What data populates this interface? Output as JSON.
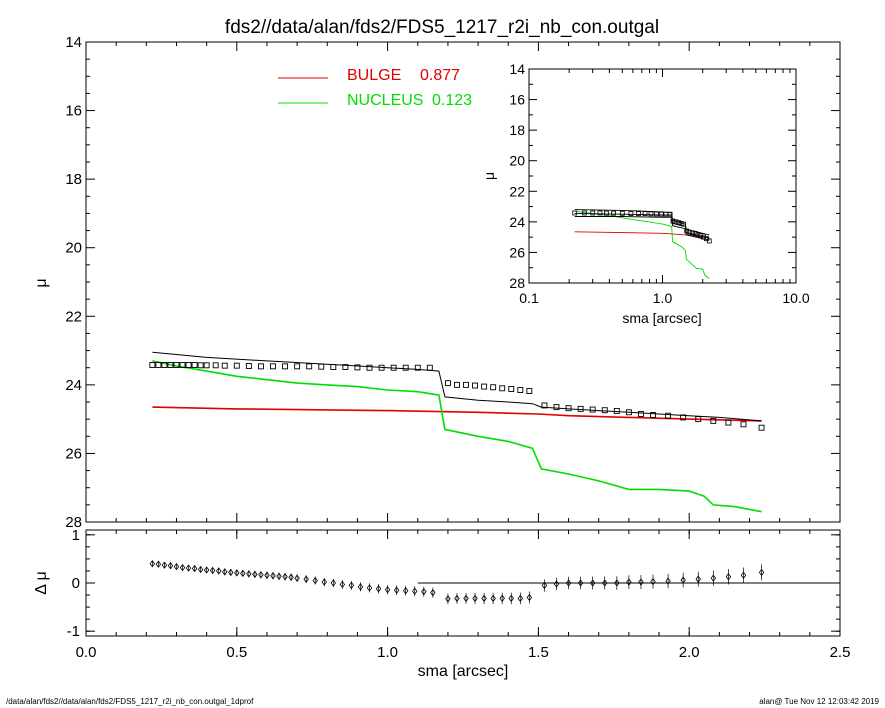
{
  "title": "fds2//data/alan/fds2/FDS5_1217_r2i_nb_con.outgal",
  "footer_left": "/data/alan/fds2//data/alan/fds2/FDS5_1217_r2i_nb_con.outgal_1dprof",
  "footer_right": "alan@  Tue Nov 12 12:03:42 2019",
  "colors": {
    "bulge": "#e00000",
    "nucleus": "#00dd00",
    "model": "#000000",
    "data": "#000000"
  },
  "chart_data": [
    {
      "type": "line",
      "id": "main",
      "xlim": [
        0.0,
        2.5
      ],
      "ylim": [
        28,
        14
      ],
      "ylabel": "μ",
      "xlabel": "",
      "yticks": [
        14,
        16,
        18,
        20,
        22,
        24,
        26,
        28
      ],
      "legend": {
        "placement": "top-center",
        "entries": [
          {
            "label": "BULGE",
            "value": "0.877",
            "color": "#e00000"
          },
          {
            "label": "NUCLEUS",
            "value": "0.123",
            "color": "#00dd00"
          }
        ]
      },
      "series": [
        {
          "key": "bulge",
          "style": "line",
          "color": "#e00000",
          "x": [
            0.22,
            0.5,
            1.0,
            1.3,
            1.5,
            1.6,
            1.8,
            2.0,
            2.24
          ],
          "y": [
            24.65,
            24.7,
            24.75,
            24.8,
            24.85,
            24.9,
            24.95,
            25.0,
            25.05
          ]
        },
        {
          "key": "nucleus",
          "style": "line",
          "color": "#00dd00",
          "x": [
            0.22,
            0.3,
            0.4,
            0.5,
            0.6,
            0.7,
            0.8,
            0.9,
            1.0,
            1.1,
            1.17,
            1.19,
            1.3,
            1.4,
            1.48,
            1.51,
            1.6,
            1.7,
            1.8,
            1.9,
            2.0,
            2.05,
            2.08,
            2.15,
            2.24
          ],
          "y": [
            23.3,
            23.45,
            23.6,
            23.75,
            23.85,
            23.95,
            24.0,
            24.05,
            24.15,
            24.2,
            24.3,
            25.3,
            25.5,
            25.65,
            25.85,
            26.45,
            26.6,
            26.8,
            27.05,
            27.05,
            27.1,
            27.25,
            27.5,
            27.55,
            27.7
          ]
        },
        {
          "key": "model",
          "style": "line",
          "color": "#000000",
          "x": [
            0.22,
            0.4,
            0.6,
            0.8,
            1.0,
            1.1,
            1.17,
            1.19,
            1.3,
            1.4,
            1.48,
            1.51,
            1.6,
            1.7,
            1.8,
            1.9,
            2.0,
            2.1,
            2.24
          ],
          "y": [
            23.05,
            23.2,
            23.3,
            23.4,
            23.5,
            23.55,
            23.6,
            24.35,
            24.45,
            24.5,
            24.55,
            24.65,
            24.7,
            24.75,
            24.8,
            24.85,
            24.9,
            24.95,
            25.05
          ]
        },
        {
          "key": "data",
          "style": "squares",
          "color": "#000000",
          "x": [
            0.22,
            0.24,
            0.26,
            0.28,
            0.3,
            0.32,
            0.34,
            0.36,
            0.38,
            0.4,
            0.43,
            0.46,
            0.5,
            0.54,
            0.58,
            0.62,
            0.66,
            0.7,
            0.74,
            0.78,
            0.82,
            0.86,
            0.9,
            0.94,
            0.98,
            1.02,
            1.06,
            1.1,
            1.14,
            1.2,
            1.23,
            1.26,
            1.29,
            1.32,
            1.35,
            1.38,
            1.41,
            1.44,
            1.47,
            1.52,
            1.56,
            1.6,
            1.64,
            1.68,
            1.72,
            1.76,
            1.8,
            1.84,
            1.88,
            1.93,
            1.98,
            2.03,
            2.08,
            2.13,
            2.18,
            2.24
          ],
          "y": [
            23.42,
            23.42,
            23.42,
            23.42,
            23.42,
            23.42,
            23.42,
            23.42,
            23.43,
            23.43,
            23.43,
            23.44,
            23.44,
            23.45,
            23.46,
            23.46,
            23.46,
            23.46,
            23.46,
            23.47,
            23.48,
            23.48,
            23.49,
            23.5,
            23.5,
            23.5,
            23.5,
            23.5,
            23.5,
            23.95,
            24.0,
            24.0,
            24.02,
            24.05,
            24.07,
            24.1,
            24.12,
            24.15,
            24.18,
            24.6,
            24.65,
            24.68,
            24.7,
            24.72,
            24.74,
            24.76,
            24.8,
            24.85,
            24.88,
            24.9,
            24.95,
            25.0,
            25.05,
            25.1,
            25.15,
            25.25
          ]
        }
      ]
    },
    {
      "type": "scatter",
      "id": "residual",
      "xlim": [
        0.0,
        2.5
      ],
      "ylim": [
        -1.1,
        1.1
      ],
      "xlabel": "sma [arcsec]",
      "ylabel": "Δ μ",
      "xticks": [
        "0.0",
        "0.5",
        "1.0",
        "1.5",
        "2.0",
        "2.5"
      ],
      "yticks": [
        "1",
        "0",
        "-1"
      ],
      "zero_line_x": [
        1.1,
        2.5
      ],
      "series": [
        {
          "key": "residual",
          "style": "diamonds-with-errorbars",
          "x": [
            0.22,
            0.24,
            0.26,
            0.28,
            0.3,
            0.32,
            0.34,
            0.36,
            0.38,
            0.4,
            0.42,
            0.44,
            0.46,
            0.48,
            0.5,
            0.52,
            0.54,
            0.56,
            0.58,
            0.6,
            0.62,
            0.64,
            0.66,
            0.68,
            0.7,
            0.73,
            0.76,
            0.79,
            0.82,
            0.85,
            0.88,
            0.91,
            0.94,
            0.97,
            1.0,
            1.03,
            1.06,
            1.09,
            1.12,
            1.15,
            1.2,
            1.23,
            1.26,
            1.29,
            1.32,
            1.35,
            1.38,
            1.41,
            1.44,
            1.47,
            1.52,
            1.56,
            1.6,
            1.64,
            1.68,
            1.72,
            1.76,
            1.8,
            1.84,
            1.88,
            1.93,
            1.98,
            2.03,
            2.08,
            2.13,
            2.18,
            2.24
          ],
          "y": [
            0.4,
            0.39,
            0.37,
            0.36,
            0.34,
            0.32,
            0.31,
            0.3,
            0.28,
            0.27,
            0.26,
            0.25,
            0.23,
            0.22,
            0.21,
            0.2,
            0.19,
            0.18,
            0.17,
            0.16,
            0.15,
            0.14,
            0.13,
            0.12,
            0.1,
            0.08,
            0.05,
            0.02,
            0.0,
            -0.03,
            -0.05,
            -0.08,
            -0.1,
            -0.12,
            -0.14,
            -0.15,
            -0.16,
            -0.17,
            -0.18,
            -0.2,
            -0.33,
            -0.32,
            -0.32,
            -0.32,
            -0.32,
            -0.32,
            -0.32,
            -0.32,
            -0.32,
            -0.3,
            -0.05,
            -0.02,
            0.0,
            0.0,
            0.0,
            0.0,
            0.0,
            0.02,
            0.02,
            0.03,
            0.04,
            0.06,
            0.08,
            0.1,
            0.13,
            0.16,
            0.22
          ]
        }
      ]
    },
    {
      "type": "line",
      "id": "inset",
      "xscale": "log",
      "xlim": [
        0.1,
        10.0
      ],
      "ylim": [
        28,
        14
      ],
      "xlabel": "sma [arcsec]",
      "ylabel": "μ",
      "xticks": [
        "0.1",
        "1.0",
        "10.0"
      ],
      "yticks": [
        14,
        16,
        18,
        20,
        22,
        24,
        26,
        28
      ],
      "series": [
        {
          "key": "bulge",
          "style": "line",
          "color": "#e00000",
          "x": [
            0.22,
            0.5,
            1.0,
            1.5,
            2.24
          ],
          "y": [
            24.65,
            24.7,
            24.75,
            24.85,
            25.05
          ]
        },
        {
          "key": "nucleus",
          "style": "line",
          "color": "#00dd00",
          "x": [
            0.22,
            0.4,
            0.6,
            0.8,
            1.0,
            1.17,
            1.19,
            1.4,
            1.48,
            1.51,
            1.8,
            2.0,
            2.08,
            2.24
          ],
          "y": [
            23.3,
            23.6,
            23.85,
            24.0,
            24.15,
            24.3,
            25.3,
            25.65,
            25.85,
            26.45,
            27.05,
            27.1,
            27.5,
            27.7
          ]
        },
        {
          "key": "model-upper",
          "style": "line",
          "color": "#000000",
          "x": [
            0.22,
            0.5,
            1.0,
            1.17,
            1.19,
            1.48,
            1.51,
            2.24
          ],
          "y": [
            23.2,
            23.25,
            23.35,
            23.4,
            23.9,
            24.15,
            24.5,
            24.85
          ]
        },
        {
          "key": "model-mid",
          "style": "line",
          "color": "#000000",
          "x": [
            0.22,
            0.5,
            1.0,
            1.17,
            1.19,
            1.48,
            1.51,
            2.24
          ],
          "y": [
            23.45,
            23.5,
            23.55,
            23.55,
            24.1,
            24.3,
            24.7,
            25.05
          ]
        },
        {
          "key": "model-lower",
          "style": "line",
          "color": "#000000",
          "x": [
            0.22,
            0.5,
            1.0,
            1.17,
            1.19,
            1.48,
            1.51,
            2.24
          ],
          "y": [
            23.65,
            23.65,
            23.7,
            23.7,
            24.25,
            24.45,
            24.85,
            25.2
          ]
        },
        {
          "key": "data",
          "style": "squares",
          "color": "#000000",
          "x": [
            0.22,
            0.26,
            0.3,
            0.34,
            0.38,
            0.43,
            0.5,
            0.58,
            0.66,
            0.74,
            0.82,
            0.9,
            0.98,
            1.06,
            1.14,
            1.2,
            1.26,
            1.32,
            1.38,
            1.44,
            1.52,
            1.6,
            1.68,
            1.76,
            1.84,
            1.93,
            2.03,
            2.13,
            2.24
          ],
          "y": [
            23.42,
            23.42,
            23.42,
            23.42,
            23.43,
            23.43,
            23.44,
            23.46,
            23.46,
            23.46,
            23.48,
            23.49,
            23.5,
            23.5,
            23.5,
            23.95,
            24.0,
            24.05,
            24.1,
            24.15,
            24.6,
            24.68,
            24.72,
            24.76,
            24.85,
            24.9,
            25.0,
            25.1,
            25.25
          ]
        }
      ]
    }
  ]
}
